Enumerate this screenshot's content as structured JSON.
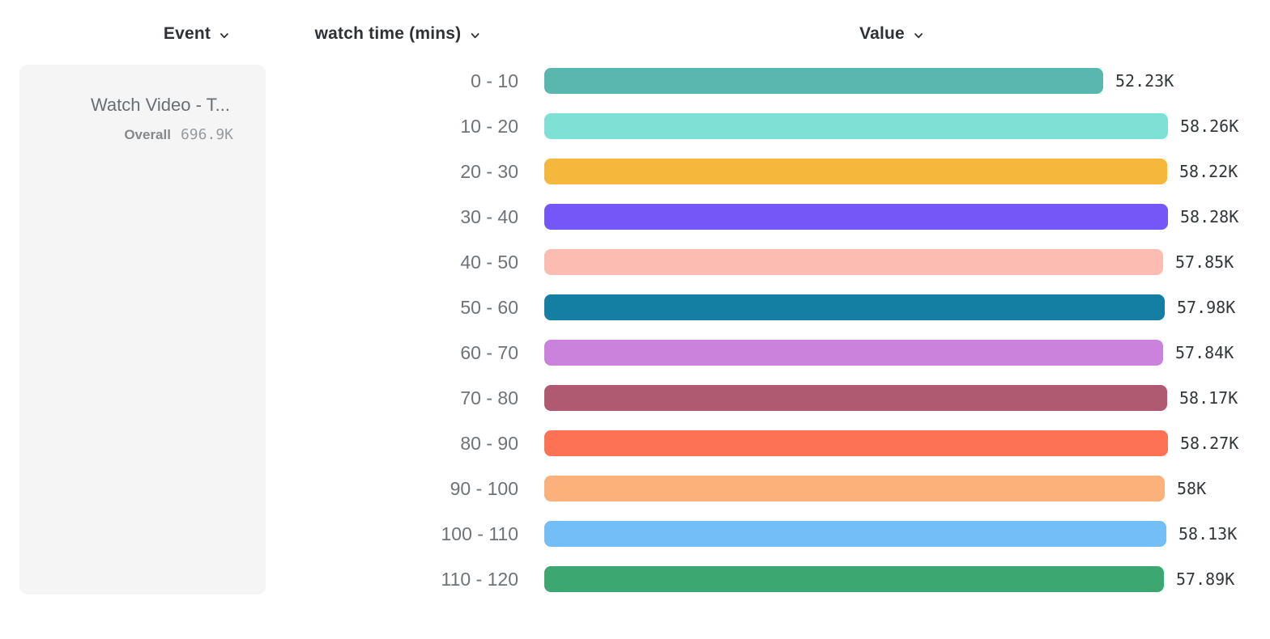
{
  "header": {
    "columns": [
      {
        "label": "Event"
      },
      {
        "label": "watch time (mins)"
      },
      {
        "label": "Value"
      }
    ]
  },
  "event_card": {
    "title": "Watch Video - T...",
    "overall_label": "Overall",
    "overall_value": "696.9K"
  },
  "chart_data": {
    "type": "bar",
    "orientation": "horizontal",
    "title": "",
    "xlabel": "Value",
    "ylabel": "watch time (mins)",
    "unit": "K",
    "xlim": [
      0,
      58.28
    ],
    "grid": false,
    "legend": false,
    "categories": [
      "0 - 10",
      "10 - 20",
      "20 - 30",
      "30 - 40",
      "40 - 50",
      "50 - 60",
      "60 - 70",
      "70 - 80",
      "80 - 90",
      "90 - 100",
      "100 - 110",
      "110 - 120"
    ],
    "values": [
      52.23,
      58.26,
      58.22,
      58.28,
      57.85,
      57.98,
      57.84,
      58.17,
      58.27,
      58,
      58.13,
      57.89
    ],
    "value_labels": [
      "52.23K",
      "58.26K",
      "58.22K",
      "58.28K",
      "57.85K",
      "57.98K",
      "57.84K",
      "58.17K",
      "58.27K",
      "58K",
      "58.13K",
      "57.89K"
    ],
    "colors": [
      "#5ab7af",
      "#7fe1d5",
      "#f5b83c",
      "#7557f8",
      "#fcbcb1",
      "#147ea3",
      "#cb82dd",
      "#b05a71",
      "#fd7155",
      "#fcb07a",
      "#74bef7",
      "#3ca770"
    ]
  }
}
